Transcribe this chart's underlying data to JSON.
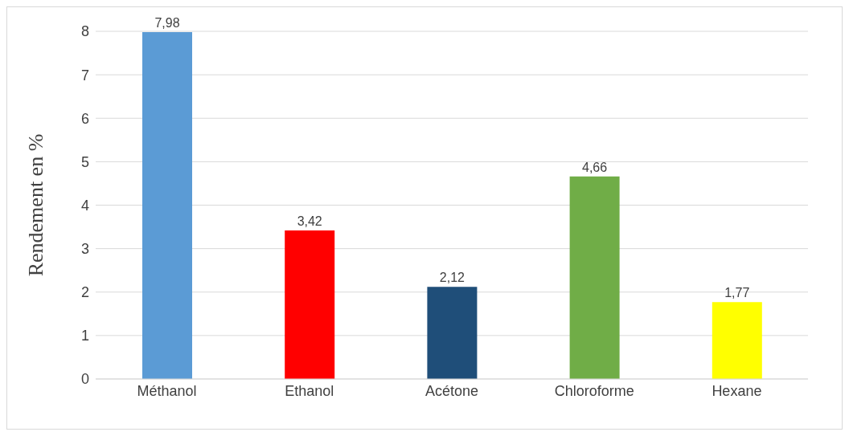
{
  "chart_data": {
    "type": "bar",
    "ylabel": "Rendement en %",
    "categories": [
      "Méthanol",
      "Ethanol",
      "Acétone",
      "Chloroforme",
      "Hexane"
    ],
    "values": [
      7.98,
      3.42,
      2.12,
      4.66,
      1.77
    ],
    "colors": [
      "#5b9bd5",
      "#ff0000",
      "#1f4e79",
      "#70ad47",
      "#ffff00"
    ],
    "value_labels": [
      "7,98",
      "3,42",
      "2,12",
      "4,66",
      "1,77"
    ],
    "ylim": [
      0,
      8
    ],
    "yticks": [
      0,
      1,
      2,
      3,
      4,
      5,
      6,
      7,
      8
    ],
    "grid": "y"
  }
}
